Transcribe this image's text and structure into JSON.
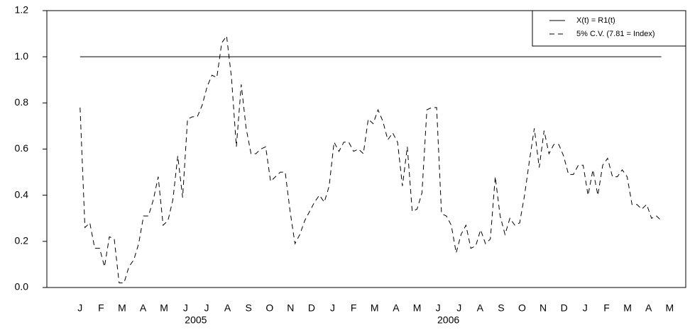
{
  "chart_data": {
    "type": "line",
    "series": [
      {
        "name": "X(t) = R1(t)",
        "color": "#000000",
        "line_style": "solid",
        "x": [
          0,
          119
        ],
        "values": [
          1,
          1
        ]
      },
      {
        "name": "5% C.V. (7.81 = Index)",
        "color": "#000000",
        "line_style": "dashed",
        "x": [
          0,
          1,
          2,
          3,
          4,
          5,
          6,
          7,
          8,
          9,
          10,
          11,
          12,
          13,
          14,
          15,
          16,
          17,
          18,
          19,
          20,
          21,
          22,
          23,
          24,
          25,
          26,
          27,
          28,
          29,
          30,
          31,
          32,
          33,
          34,
          35,
          36,
          37,
          38,
          39,
          40,
          41,
          42,
          43,
          44,
          45,
          46,
          47,
          48,
          49,
          50,
          51,
          52,
          53,
          54,
          55,
          56,
          57,
          58,
          59,
          60,
          61,
          62,
          63,
          64,
          65,
          66,
          67,
          68,
          69,
          70,
          71,
          72,
          73,
          74,
          75,
          76,
          77,
          78,
          79,
          80,
          81,
          82,
          83,
          84,
          85,
          86,
          87,
          88,
          89,
          90,
          91,
          92,
          93,
          94,
          95,
          96,
          97,
          98,
          99,
          100,
          101,
          102,
          103,
          104,
          105,
          106,
          107,
          108,
          109,
          110,
          111,
          112,
          113,
          114,
          115,
          116,
          117,
          118,
          119
        ],
        "values": [
          0.78,
          0.26,
          0.28,
          0.17,
          0.17,
          0.09,
          0.22,
          0.21,
          0.02,
          0.02,
          0.09,
          0.12,
          0.19,
          0.31,
          0.31,
          0.38,
          0.48,
          0.27,
          0.29,
          0.38,
          0.57,
          0.39,
          0.73,
          0.74,
          0.74,
          0.79,
          0.87,
          0.92,
          0.91,
          1.06,
          1.09,
          0.91,
          0.61,
          0.88,
          0.69,
          0.58,
          0.58,
          0.6,
          0.61,
          0.46,
          0.48,
          0.5,
          0.5,
          0.33,
          0.19,
          0.23,
          0.29,
          0.33,
          0.37,
          0.4,
          0.37,
          0.44,
          0.63,
          0.59,
          0.63,
          0.63,
          0.59,
          0.6,
          0.58,
          0.73,
          0.71,
          0.77,
          0.72,
          0.64,
          0.67,
          0.63,
          0.44,
          0.61,
          0.33,
          0.34,
          0.41,
          0.77,
          0.78,
          0.78,
          0.32,
          0.31,
          0.27,
          0.15,
          0.23,
          0.27,
          0.17,
          0.18,
          0.25,
          0.19,
          0.21,
          0.48,
          0.31,
          0.23,
          0.3,
          0.27,
          0.28,
          0.4,
          0.55,
          0.69,
          0.52,
          0.68,
          0.58,
          0.62,
          0.62,
          0.57,
          0.49,
          0.49,
          0.53,
          0.53,
          0.4,
          0.51,
          0.4,
          0.53,
          0.56,
          0.48,
          0.48,
          0.51,
          0.48,
          0.36,
          0.36,
          0.34,
          0.36,
          0.3,
          0.31,
          0.29
        ]
      }
    ],
    "xlim": [
      -6.8,
      124
    ],
    "xticks": [
      {
        "value": 0,
        "label": "J"
      },
      {
        "value": 4.3,
        "label": "F"
      },
      {
        "value": 8.6,
        "label": "M"
      },
      {
        "value": 12.9,
        "label": "A"
      },
      {
        "value": 17.2,
        "label": "M"
      },
      {
        "value": 21.6,
        "label": "J"
      },
      {
        "value": 25.9,
        "label": "J"
      },
      {
        "value": 30.2,
        "label": "A"
      },
      {
        "value": 34.5,
        "label": "S"
      },
      {
        "value": 38.8,
        "label": "O"
      },
      {
        "value": 43.1,
        "label": "N"
      },
      {
        "value": 47.4,
        "label": "D"
      },
      {
        "value": 51.7,
        "label": "J"
      },
      {
        "value": 56.0,
        "label": "F"
      },
      {
        "value": 60.3,
        "label": "M"
      },
      {
        "value": 64.7,
        "label": "A"
      },
      {
        "value": 69.0,
        "label": "M"
      },
      {
        "value": 73.3,
        "label": "J"
      },
      {
        "value": 77.6,
        "label": "J"
      },
      {
        "value": 81.9,
        "label": "A"
      },
      {
        "value": 86.2,
        "label": "S"
      },
      {
        "value": 90.5,
        "label": "O"
      },
      {
        "value": 94.8,
        "label": "N"
      },
      {
        "value": 99.1,
        "label": "D"
      },
      {
        "value": 103.4,
        "label": "J"
      },
      {
        "value": 107.8,
        "label": "F"
      },
      {
        "value": 112.1,
        "label": "M"
      },
      {
        "value": 116.4,
        "label": "A"
      },
      {
        "value": 120.7,
        "label": "M"
      }
    ],
    "year_labels": [
      {
        "value": 23.7,
        "label": "2005"
      },
      {
        "value": 75.4,
        "label": "2006"
      }
    ],
    "ylim": [
      0,
      1.2
    ],
    "yticks": [
      {
        "value": 0,
        "label": "0.0"
      },
      0.2,
      0.4,
      0.6,
      0.8,
      {
        "value": 1,
        "label": "1.0"
      },
      1.2
    ],
    "legend": "top-right"
  }
}
